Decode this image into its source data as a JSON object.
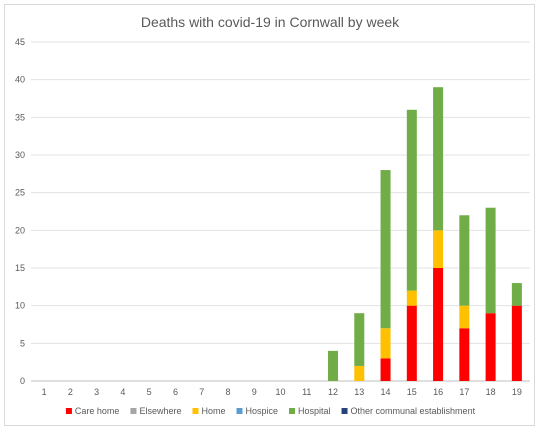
{
  "chart_data": {
    "type": "bar",
    "stacked": true,
    "title": "Deaths with covid-19 in Cornwall by week",
    "xlabel": "",
    "ylabel": "",
    "categories": [
      "1",
      "2",
      "3",
      "4",
      "5",
      "6",
      "7",
      "8",
      "9",
      "10",
      "11",
      "12",
      "13",
      "14",
      "15",
      "16",
      "17",
      "18",
      "19"
    ],
    "ylim": [
      0,
      45
    ],
    "yticks": [
      0,
      5,
      10,
      15,
      20,
      25,
      30,
      35,
      40,
      45
    ],
    "grid": true,
    "legend_position": "bottom",
    "series": [
      {
        "name": "Care home",
        "color": "#ff0000",
        "values": [
          0,
          0,
          0,
          0,
          0,
          0,
          0,
          0,
          0,
          0,
          0,
          0,
          0,
          3,
          10,
          15,
          7,
          9,
          10
        ]
      },
      {
        "name": "Elsewhere",
        "color": "#a5a5a5",
        "values": [
          0,
          0,
          0,
          0,
          0,
          0,
          0,
          0,
          0,
          0,
          0,
          0,
          0,
          0,
          0,
          0,
          0,
          0,
          0
        ]
      },
      {
        "name": "Home",
        "color": "#ffc000",
        "values": [
          0,
          0,
          0,
          0,
          0,
          0,
          0,
          0,
          0,
          0,
          0,
          0,
          2,
          4,
          2,
          5,
          3,
          0,
          0
        ]
      },
      {
        "name": "Hospice",
        "color": "#5b9bd5",
        "values": [
          0,
          0,
          0,
          0,
          0,
          0,
          0,
          0,
          0,
          0,
          0,
          0,
          0,
          0,
          0,
          0,
          0,
          0,
          0
        ]
      },
      {
        "name": "Hospital",
        "color": "#70ad47",
        "values": [
          0,
          0,
          0,
          0,
          0,
          0,
          0,
          0,
          0,
          0,
          0,
          4,
          7,
          21,
          24,
          19,
          12,
          14,
          3
        ]
      },
      {
        "name": "Other communal establishment",
        "color": "#264478",
        "values": [
          0,
          0,
          0,
          0,
          0,
          0,
          0,
          0,
          0,
          0,
          0,
          0,
          0,
          0,
          0,
          0,
          0,
          0,
          0
        ]
      }
    ]
  }
}
